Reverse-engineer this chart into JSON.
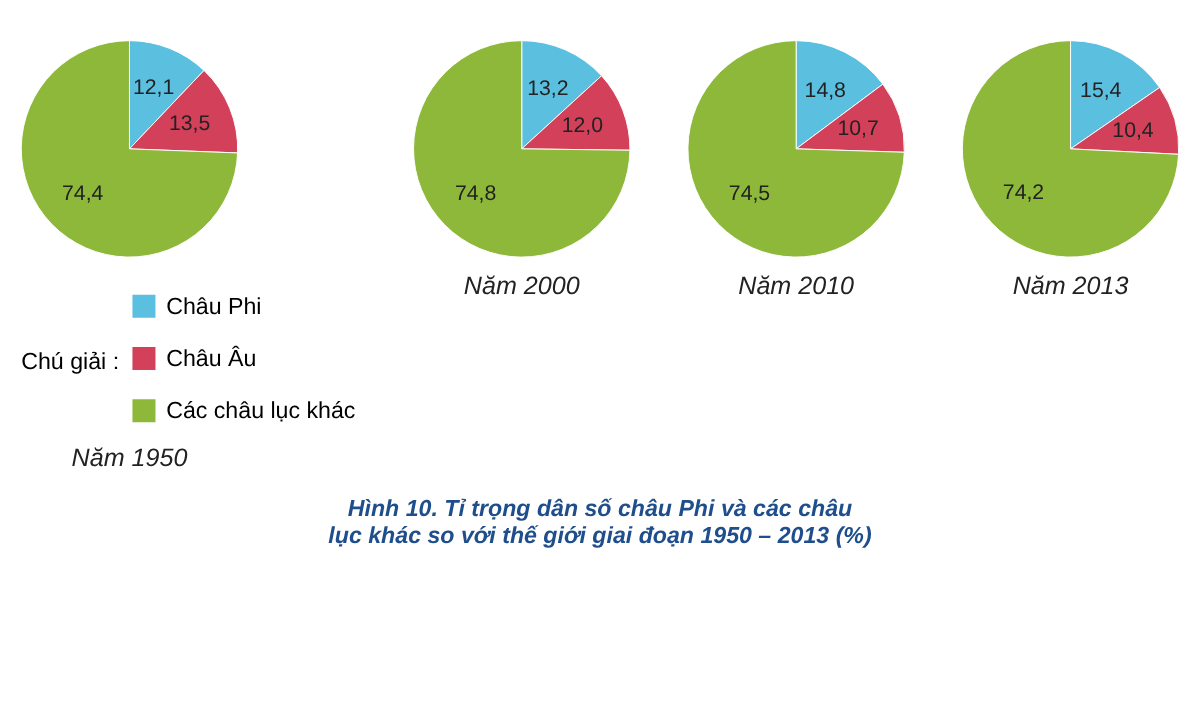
{
  "chart_data": [
    {
      "type": "pie",
      "title": "Năm 1950",
      "categories": [
        "Châu Phi",
        "Châu Âu",
        "Các châu lục khác"
      ],
      "values": [
        12.1,
        13.5,
        74.4
      ],
      "value_labels": [
        "12,1",
        "13,5",
        "74,4"
      ],
      "colors": [
        "#5bbfe0",
        "#d2405a",
        "#8db83a"
      ],
      "legend": "bottom",
      "legend_title": "Chú giải :",
      "annotations": [
        "Hình 10. Tỉ trọng dân số châu Phi và các châu lục khác so với thế giới giai đoạn 1950 – 2013 (%)"
      ]
    },
    {
      "type": "pie",
      "title": "Năm 2000",
      "categories": [
        null,
        null,
        null
      ],
      "values": [
        13.2,
        12.0,
        74.8
      ],
      "value_labels": [
        "13,2",
        "12,0",
        "74,8"
      ],
      "colors": [
        "#5bbfe0",
        "#d2405a",
        "#8db83a"
      ]
    },
    {
      "type": "pie",
      "title": "Năm 2010",
      "categories": [
        null,
        null,
        null
      ],
      "values": [
        14.8,
        10.7,
        74.5
      ],
      "value_labels": [
        "14,8",
        "10,7",
        "74,5"
      ],
      "colors": [
        "#5bbfe0",
        "#d2405a",
        "#8db83a"
      ]
    },
    {
      "type": "pie",
      "title": "Năm 2013",
      "categories": [
        null,
        null,
        null
      ],
      "values": [
        15.4,
        10.4,
        74.2
      ],
      "value_labels": [
        "15,4",
        "10,4",
        "74,2"
      ],
      "colors": [
        "#5bbfe0",
        "#d2405a",
        "#8db83a"
      ]
    }
  ]
}
